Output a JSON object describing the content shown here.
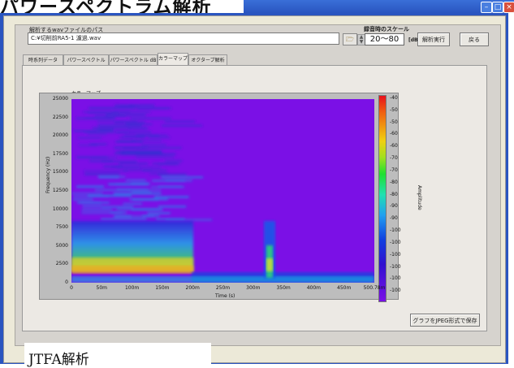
{
  "window": {
    "banner_title": "パワースペクトラム解析",
    "min": "–",
    "max": "□",
    "close": "×"
  },
  "file": {
    "label": "解析するwavファイルのパス",
    "path": "C:¥切削前RA5-1 濾過.wav",
    "folder_icon": "folder-icon"
  },
  "scale": {
    "label": "録音時のスケール",
    "value": "20～80",
    "unit": "[dB]"
  },
  "buttons": {
    "analyze": "解析実行",
    "back": "戻る",
    "save_jpeg": "グラフをJPEG形式で保存"
  },
  "tabs": [
    "時系列データ",
    "パワースペクトル",
    "パワースペクトル dB",
    "カラーマップ",
    "オクターブ解析"
  ],
  "active_tab": "カラーマップ",
  "plot": {
    "label": "カラーマップ",
    "xlabel": "Time (s)",
    "ylabel": "Frequency (Hz)",
    "cbar_label": "Amplitude"
  },
  "chart_data": {
    "type": "heatmap",
    "title": "カラーマップ",
    "xlabel": "Time (s)",
    "ylabel": "Frequency (Hz)",
    "x_ticks": [
      "0",
      "50m",
      "100m",
      "150m",
      "200m",
      "250m",
      "300m",
      "350m",
      "400m",
      "450m",
      "500.78m"
    ],
    "y_ticks": [
      "0",
      "2500",
      "5000",
      "7500",
      "10000",
      "12500",
      "15000",
      "17500",
      "20000",
      "22500",
      "25000"
    ],
    "colorbar_ticks": [
      "-40",
      "-50",
      "-50",
      "-60",
      "-60",
      "-70",
      "-70",
      "-80",
      "-80",
      "-90",
      "-90",
      "-100",
      "-100",
      "-100",
      "-100",
      "-100",
      "-100"
    ],
    "colorbar_label": "Amplitude",
    "xlim": [
      0,
      0.50078
    ],
    "ylim": [
      0,
      25000
    ],
    "colors": {
      "low": "#7a10e6",
      "high": "#e8101c"
    }
  },
  "footer": {
    "text": "JTFA解析"
  }
}
